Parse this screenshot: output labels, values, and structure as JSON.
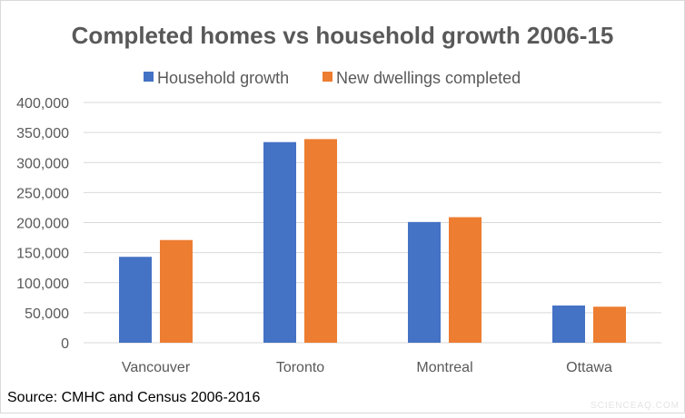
{
  "chart_data": {
    "type": "bar",
    "title": "Completed homes vs household growth 2006-15",
    "xlabel": "",
    "ylabel": "",
    "categories": [
      "Vancouver",
      "Toronto",
      "Montreal",
      "Ottawa"
    ],
    "series": [
      {
        "name": "Household growth",
        "color": "#4472C4",
        "values": [
          143000,
          334000,
          201000,
          62000
        ]
      },
      {
        "name": "New dwellings completed",
        "color": "#ED7D31",
        "values": [
          171000,
          339000,
          209000,
          60000
        ]
      }
    ],
    "ylim": [
      0,
      400000
    ],
    "yticks": [
      0,
      50000,
      100000,
      150000,
      200000,
      250000,
      300000,
      350000,
      400000
    ],
    "ytick_labels": [
      "0",
      "50,000",
      "100,000",
      "150,000",
      "200,000",
      "250,000",
      "300,000",
      "350,000",
      "400,000"
    ],
    "grid": true,
    "legend_position": "top-center"
  },
  "source": "Source: CMHC and Census 2006-2016",
  "watermark": "SCIENCEAQ.COM"
}
